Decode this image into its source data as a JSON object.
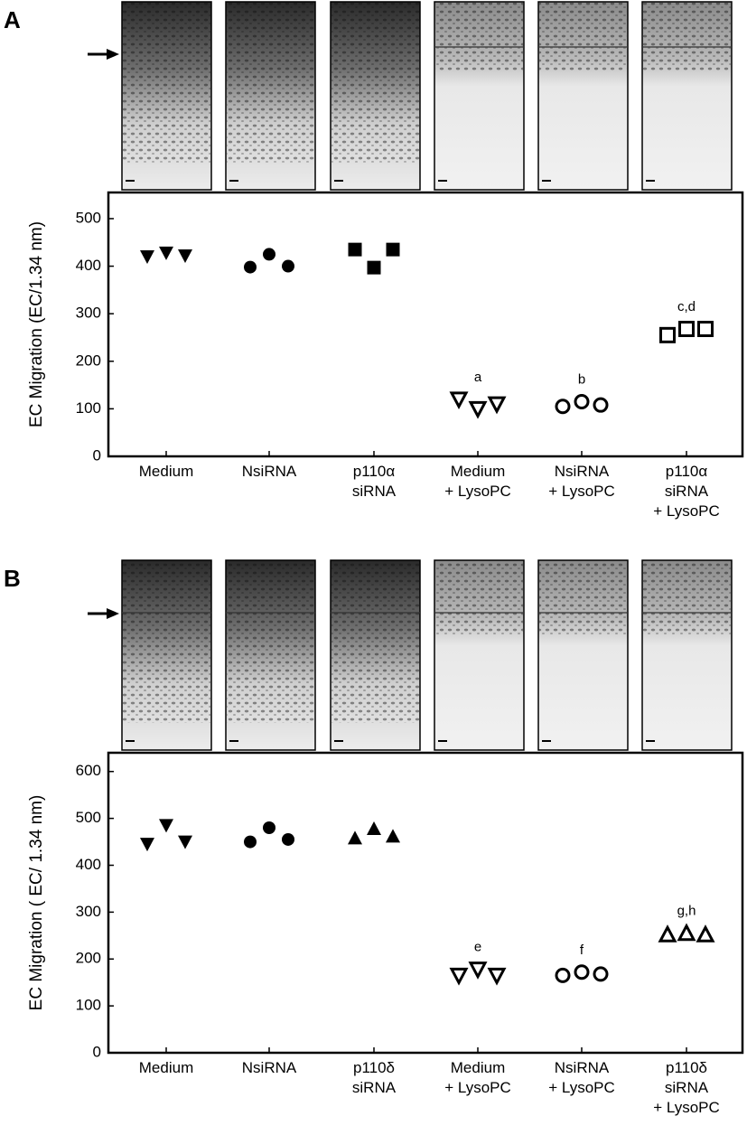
{
  "chart_data": [
    {
      "type": "scatter",
      "panel_label": "A",
      "y_label": "EC Migration (EC/1.34 nm)",
      "categories": [
        "Medium",
        "NsiRNA",
        "p110α\nsiRNA",
        "Medium\n+ LysoPC",
        "NsiRNA\n+ LysoPC",
        "p110α\nsiRNA\n+ LysoPC"
      ],
      "values": [
        [
          420,
          428,
          422
        ],
        [
          398,
          425,
          400
        ],
        [
          435,
          397,
          435
        ],
        [
          120,
          100,
          110
        ],
        [
          105,
          115,
          108
        ],
        [
          255,
          268,
          268
        ]
      ],
      "markers": [
        "triangle-down",
        "circle",
        "square",
        "triangle-down-open",
        "circle-open",
        "square-open"
      ],
      "annotations": [
        null,
        null,
        null,
        "a",
        "b",
        "c,d"
      ],
      "color": "#000000",
      "ylim": [
        0,
        555
      ],
      "yticks": [
        0,
        100,
        200,
        300,
        400,
        500
      ]
    },
    {
      "type": "scatter",
      "panel_label": "B",
      "y_label": "EC Migration ( EC/ 1.34 nm)",
      "categories": [
        "Medium",
        "NsiRNA",
        "p110δ\nsiRNA",
        "Medium\n+ LysoPC",
        "NsiRNA\n+ LysoPC",
        "p110δ\nsiRNA\n+ LysoPC"
      ],
      "values": [
        [
          445,
          485,
          450
        ],
        [
          450,
          480,
          455
        ],
        [
          458,
          478,
          462
        ],
        [
          165,
          178,
          165
        ],
        [
          165,
          172,
          168
        ],
        [
          252,
          255,
          252
        ]
      ],
      "markers": [
        "triangle-down",
        "circle",
        "triangle-up",
        "triangle-down-open",
        "circle-open",
        "triangle-up-open"
      ],
      "annotations": [
        null,
        null,
        null,
        "e",
        "f",
        "g,h"
      ],
      "color": "#000000",
      "ylim": [
        0,
        640
      ],
      "yticks": [
        0,
        100,
        200,
        300,
        400,
        500,
        600
      ]
    }
  ]
}
